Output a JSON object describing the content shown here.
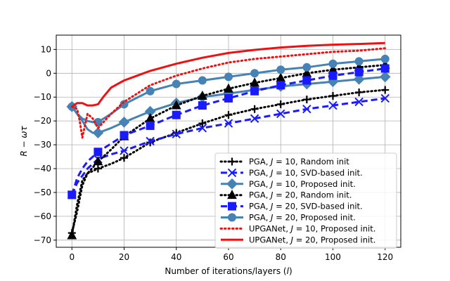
{
  "chart_data": {
    "type": "line",
    "title": "",
    "xlabel": "Number of iterations/layers (l)",
    "ylabel": "R − ωτ",
    "xlim": [
      -6,
      126
    ],
    "ylim": [
      -73,
      16
    ],
    "xticks": [
      0,
      20,
      40,
      60,
      80,
      100,
      120
    ],
    "yticks": [
      10,
      0,
      -10,
      -20,
      -30,
      -40,
      -50,
      -60,
      -70
    ],
    "grid": true,
    "legend_position": "lower-right",
    "series": [
      {
        "name": "PGA, J = 10, Random init",
        "label_parts": {
          "pre": "PGA, ",
          "var": "J",
          "post": " = 10, Random init"
        },
        "color": "#000000",
        "line": "dotted",
        "marker": "plus",
        "x": [
          0,
          2,
          4,
          6,
          8,
          10,
          15,
          20,
          30,
          40,
          50,
          60,
          70,
          80,
          90,
          100,
          110,
          120
        ],
        "y": [
          -67,
          -58,
          -47,
          -42,
          -41,
          -40,
          -38,
          -35.5,
          -29,
          -25,
          -21,
          -17.5,
          -15,
          -13,
          -11,
          -9.5,
          -8,
          -7
        ],
        "marker_x": [
          0,
          10,
          20,
          30,
          40,
          50,
          60,
          70,
          80,
          90,
          100,
          110,
          120
        ]
      },
      {
        "name": "PGA, J = 10, SVD-based init.",
        "label_parts": {
          "pre": "PGA, ",
          "var": "J",
          "post": " = 10, SVD-based init."
        },
        "color": "#1a1aff",
        "line": "dashed",
        "marker": "x",
        "x": [
          0,
          2,
          4,
          6,
          8,
          10,
          15,
          20,
          30,
          40,
          50,
          60,
          70,
          80,
          90,
          100,
          110,
          120
        ],
        "y": [
          -51,
          -46,
          -43,
          -40,
          -38,
          -36,
          -34,
          -32.5,
          -28.5,
          -25.5,
          -23,
          -21,
          -19,
          -17,
          -15,
          -13.5,
          -12,
          -10.5
        ],
        "marker_x": [
          0,
          10,
          20,
          30,
          40,
          50,
          60,
          70,
          80,
          90,
          100,
          110,
          120
        ]
      },
      {
        "name": "PGA, J = 10, Proposed init.",
        "label_parts": {
          "pre": "PGA, ",
          "var": "J",
          "post": " = 10, Proposed init."
        },
        "color": "#4682b4",
        "line": "solid",
        "marker": "diamond",
        "x": [
          0,
          2,
          4,
          6,
          8,
          10,
          15,
          20,
          30,
          40,
          50,
          60,
          70,
          80,
          90,
          100,
          110,
          120
        ],
        "y": [
          -14,
          -17,
          -20,
          -23.5,
          -25,
          -25,
          -23,
          -20.5,
          -16,
          -12.5,
          -10,
          -8.5,
          -7,
          -5.5,
          -4.5,
          -3.5,
          -2.5,
          -1.5
        ],
        "marker_x": [
          0,
          10,
          20,
          30,
          40,
          50,
          60,
          70,
          80,
          90,
          100,
          110,
          120
        ]
      },
      {
        "name": "PGA, J = 20, Random init.",
        "label_parts": {
          "pre": "PGA, ",
          "var": "J",
          "post": " = 20, Random init."
        },
        "color": "#000000",
        "line": "dotted",
        "marker": "triangle",
        "x": [
          0,
          2,
          4,
          6,
          8,
          10,
          15,
          20,
          30,
          40,
          50,
          60,
          70,
          80,
          90,
          100,
          110,
          120
        ],
        "y": [
          -68,
          -55,
          -45,
          -42,
          -39.5,
          -37,
          -32,
          -26.5,
          -19,
          -13.5,
          -9.5,
          -6.5,
          -4,
          -2,
          0,
          1.5,
          2.5,
          3.5
        ],
        "marker_x": [
          0,
          10,
          20,
          30,
          40,
          50,
          60,
          70,
          80,
          90,
          100,
          110,
          120
        ]
      },
      {
        "name": "PGA, J = 20, SVD-based init.",
        "label_parts": {
          "pre": "PGA, ",
          "var": "J",
          "post": " = 20, SVD-based init."
        },
        "color": "#1a1aff",
        "line": "dashed",
        "marker": "square",
        "x": [
          0,
          2,
          4,
          6,
          8,
          10,
          15,
          20,
          30,
          40,
          50,
          60,
          70,
          80,
          90,
          100,
          110,
          120
        ],
        "y": [
          -51,
          -44,
          -40,
          -37,
          -35,
          -33,
          -29.5,
          -26,
          -22,
          -17.5,
          -13.5,
          -10.5,
          -7.5,
          -5,
          -3,
          -1,
          0.5,
          2
        ],
        "marker_x": [
          0,
          10,
          20,
          30,
          40,
          50,
          60,
          70,
          80,
          90,
          100,
          110,
          120
        ]
      },
      {
        "name": "PGA, J = 20, Proposed init.",
        "label_parts": {
          "pre": "PGA, ",
          "var": "J",
          "post": " = 20, Proposed init."
        },
        "color": "#4682b4",
        "line": "solid",
        "marker": "circle",
        "x": [
          0,
          2,
          4,
          6,
          8,
          10,
          15,
          20,
          30,
          40,
          50,
          60,
          70,
          80,
          90,
          100,
          110,
          120
        ],
        "y": [
          -14,
          -17,
          -19,
          -20,
          -20.5,
          -20.5,
          -17,
          -13,
          -7.5,
          -4.5,
          -3,
          -1.5,
          0,
          1.5,
          2.5,
          4,
          5,
          6
        ],
        "marker_x": [
          0,
          10,
          20,
          30,
          40,
          50,
          60,
          70,
          80,
          90,
          100,
          110,
          120
        ]
      },
      {
        "name": "UPGANet, J = 10, Proposed init.",
        "label_parts": {
          "pre": "UPGANet, ",
          "var": "J",
          "post": " = 10, Proposed init."
        },
        "color": "#ee1111",
        "line": "dotted",
        "marker": "none",
        "x": [
          0,
          2,
          3,
          4,
          5,
          6,
          8,
          10,
          15,
          20,
          30,
          40,
          50,
          60,
          70,
          80,
          90,
          100,
          110,
          120
        ],
        "y": [
          -14,
          -15,
          -20,
          -27,
          -22,
          -17,
          -19,
          -23,
          -17,
          -12,
          -5,
          -1,
          2,
          4.5,
          6,
          7,
          8,
          9,
          9.5,
          10.5
        ],
        "marker_x": []
      },
      {
        "name": "UPGANet, J = 20, Proposed init.",
        "label_parts": {
          "pre": "UPGANet, ",
          "var": "J",
          "post": " = 20, Proposed init."
        },
        "color": "#ee1111",
        "line": "solid",
        "marker": "none",
        "x": [
          0,
          2,
          4,
          6,
          8,
          10,
          12,
          15,
          20,
          25,
          30,
          40,
          50,
          60,
          70,
          80,
          90,
          100,
          110,
          120
        ],
        "y": [
          -14,
          -12.5,
          -12.5,
          -13.5,
          -13.5,
          -13,
          -10,
          -6,
          -3,
          -1,
          1,
          4,
          6.5,
          8.5,
          9.8,
          10.8,
          11.5,
          12,
          12.3,
          12.7
        ],
        "marker_x": []
      }
    ]
  }
}
